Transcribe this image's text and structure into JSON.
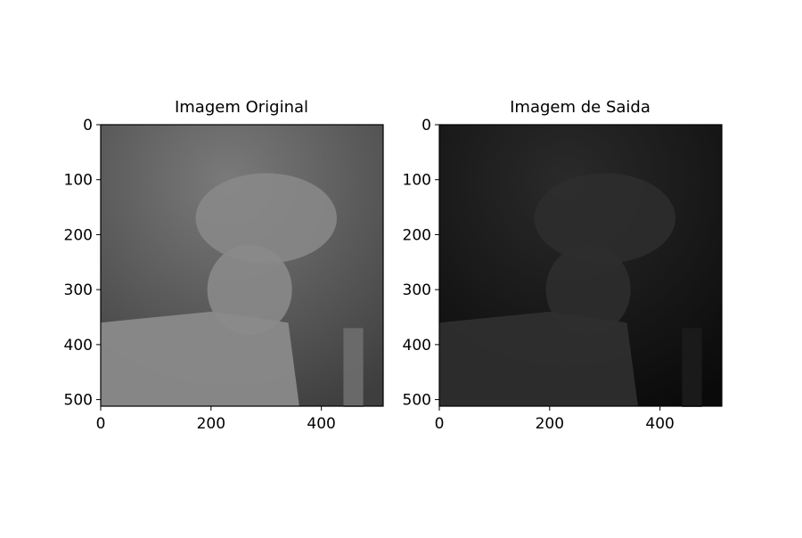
{
  "figure": {
    "background": "#ffffff"
  },
  "chart_data": [
    {
      "type": "image",
      "title": "Imagem Original",
      "xlabel": "",
      "ylabel": "",
      "xlim": [
        0,
        512
      ],
      "ylim": [
        512,
        0
      ],
      "xticks": [
        0,
        200,
        400
      ],
      "yticks": [
        0,
        100,
        200,
        300,
        400,
        500
      ],
      "colormap": "gray",
      "grid": false,
      "image_tone": {
        "background": "#6e6e6e",
        "subject": "#8a8a8a"
      }
    },
    {
      "type": "image",
      "title": "Imagem de Saida",
      "xlabel": "",
      "ylabel": "",
      "xlim": [
        0,
        512
      ],
      "ylim": [
        512,
        0
      ],
      "xticks": [
        0,
        200,
        400
      ],
      "yticks": [
        0,
        100,
        200,
        300,
        400,
        500
      ],
      "colormap": "gray",
      "grid": false,
      "image_tone": {
        "background": "#1c1c1c",
        "subject": "#2e2e2e"
      }
    }
  ]
}
